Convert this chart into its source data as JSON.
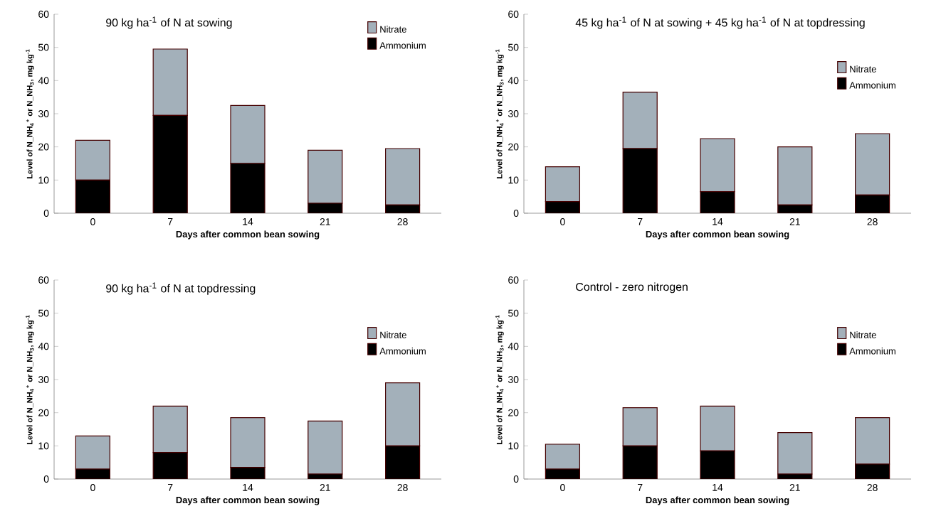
{
  "chart_data": [
    {
      "type": "bar",
      "title": "90 kg ha$^{-1}$ of N at sowing",
      "xlabel": "Days after common bean sowing",
      "ylabel": "Level of N_NH$_{4}$$^{+}$ or N_NH$_{3}$, mg kg$^{-1}$",
      "categories": [
        "0",
        "7",
        "14",
        "21",
        "28"
      ],
      "stacked": true,
      "ylim": [
        0,
        60
      ],
      "yticks": [
        0,
        10,
        20,
        30,
        40,
        50,
        60
      ],
      "legend": "top right",
      "series": [
        {
          "name": "Ammonium",
          "color": "#000000",
          "values": [
            10,
            29.5,
            15,
            3,
            2.5
          ]
        },
        {
          "name": "Nitrate",
          "color": "#a3b0ba",
          "values": [
            12,
            20,
            17.5,
            16,
            17
          ]
        }
      ]
    },
    {
      "type": "bar",
      "title": "45 kg ha$^{-1}$ of N at sowing + 45 kg ha$^{-1}$ of N at topdressing",
      "xlabel": "Days after common bean sowing",
      "ylabel": "Level of N_NH$_{4}$$^{+}$ or N_NH$_{3}$, mg kg$^{-1}$",
      "categories": [
        "0",
        "7",
        "14",
        "21",
        "28"
      ],
      "stacked": true,
      "ylim": [
        0,
        60
      ],
      "yticks": [
        0,
        10,
        20,
        30,
        40,
        50,
        60
      ],
      "legend": "right",
      "series": [
        {
          "name": "Ammonium",
          "color": "#000000",
          "values": [
            3.5,
            19.5,
            6.5,
            2.5,
            5.5
          ]
        },
        {
          "name": "Nitrate",
          "color": "#a3b0ba",
          "values": [
            10.5,
            17,
            16,
            17.5,
            18.5
          ]
        }
      ]
    },
    {
      "type": "bar",
      "title": "90 kg ha$^{-1}$ of N at topdressing",
      "xlabel": "Days after common bean sowing",
      "ylabel": "Level of N_NH$_{4}$$^{+}$ or N_NH$_{3}$, mg kg$^{-1}$",
      "categories": [
        "0",
        "7",
        "14",
        "21",
        "28"
      ],
      "stacked": true,
      "ylim": [
        0,
        60
      ],
      "yticks": [
        0,
        10,
        20,
        30,
        40,
        50,
        60
      ],
      "legend": "right",
      "series": [
        {
          "name": "Ammonium",
          "color": "#000000",
          "values": [
            3,
            8,
            3.5,
            1.5,
            10
          ]
        },
        {
          "name": "Nitrate",
          "color": "#a3b0ba",
          "values": [
            10,
            14,
            15,
            16,
            19
          ]
        }
      ]
    },
    {
      "type": "bar",
      "title": "Control - zero nitrogen",
      "xlabel": "Days after common bean sowing",
      "ylabel": "Level of N_NH$_{4}$$^{+}$ or N_NH$_{3}$, mg kg$^{-1}$",
      "categories": [
        "0",
        "7",
        "14",
        "21",
        "28"
      ],
      "stacked": true,
      "ylim": [
        0,
        60
      ],
      "yticks": [
        0,
        10,
        20,
        30,
        40,
        50,
        60
      ],
      "legend": "right",
      "series": [
        {
          "name": "Ammonium",
          "color": "#000000",
          "values": [
            3,
            10,
            8.5,
            1.5,
            4.5
          ]
        },
        {
          "name": "Nitrate",
          "color": "#a3b0ba",
          "values": [
            7.5,
            11.5,
            13.5,
            12.5,
            14
          ]
        }
      ]
    }
  ]
}
